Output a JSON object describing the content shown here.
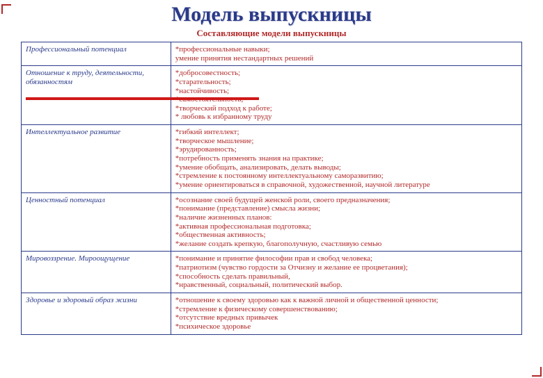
{
  "title": "Модель выпускницы",
  "title_color": "#2a3a8a",
  "title_fontsize": 30,
  "subtitle": "Составляющие модели выпускницы",
  "subtitle_color": "#b02828",
  "subtitle_fontsize": 13,
  "table_border_color": "#2a3a8a",
  "left_text_color": "#2a3a8a",
  "right_text_color": "#b02828",
  "cell_fontsize": 11,
  "rows": [
    {
      "left": "Профессиональный потенциал",
      "right": "*профессиональные навыки;\nумение принятия нестандартных решений"
    },
    {
      "left": "Отношение к труду, деятельности, обязанностям",
      "right": "*добросовестность;\n*старательность;\n*настойчивость;\n*самостоятельность;\n*творческий подход к работе;\n* любовь к избранному труду"
    },
    {
      "left": "Интеллектуальное развитие",
      "right": "*гибкий интеллект;\n*творческое мышление;\n*эрудированность;\n*потребность применять знания на практике;\n*умение обобщать, анализировать, делать выводы;\n*стремление к постоянному интеллектуальному саморазвитию;\n*умение ориентироваться в справочной, художественной, научной литературе"
    },
    {
      "left": "Ценностный потенциал",
      "right": " *осознание своей будущей женской роли, своего предназначения;\n *понимание (представление) смысла жизни;\n *наличие жизненных планов:\n *активная профессиональная подготовка;\n *общественная активность;\n *желание создать крепкую, благополучную, счастливую семью"
    },
    {
      "left": "Мировоззрение. Мироощущение",
      "right": "*понимание и принятие философии прав и свобод человека;\n*патриотизм (чувство гордости за Отчизну и желание ее процветания);\n*способность сделать правильный,\n*нравственный, социальный, политический выбор."
    },
    {
      "left": "Здоровье и здоровый образ жизни",
      "right": "*отношение к своему здоровью как к важной личной и общественной ценности;\n*стремление к физическому совершенствованию;\n*отсутствие вредных привычек\n*психическое здоровье"
    }
  ]
}
